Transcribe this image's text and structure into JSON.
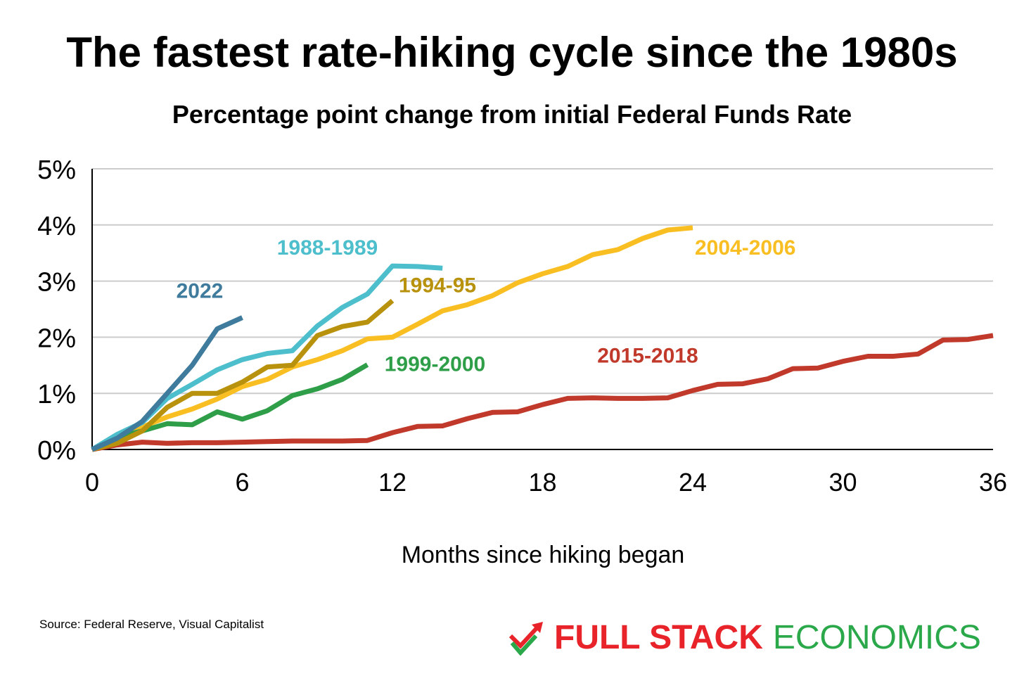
{
  "chart_data": {
    "type": "line",
    "title": "The fastest rate-hiking cycle since the 1980s",
    "subtitle": "Percentage point change from initial Federal Funds Rate",
    "xlabel": "Months since hiking began",
    "ylabel": "",
    "xlim": [
      0,
      36
    ],
    "ylim": [
      0,
      5
    ],
    "xticks": [
      0,
      6,
      12,
      18,
      24,
      30,
      36
    ],
    "yticks": [
      0,
      1,
      2,
      3,
      4,
      5
    ],
    "ytick_labels": [
      "0%",
      "1%",
      "2%",
      "3%",
      "4%",
      "5%"
    ],
    "grid": "horizontal",
    "series": [
      {
        "name": "2015-2018",
        "color": "#c0392b",
        "x": [
          0,
          1,
          2,
          3,
          4,
          5,
          6,
          7,
          8,
          9,
          10,
          11,
          12,
          13,
          14,
          15,
          16,
          17,
          18,
          19,
          20,
          21,
          22,
          23,
          24,
          25,
          26,
          27,
          28,
          29,
          30,
          31,
          32,
          33,
          34,
          35,
          36
        ],
        "values": [
          0.0,
          0.08,
          0.13,
          0.11,
          0.12,
          0.12,
          0.13,
          0.14,
          0.15,
          0.15,
          0.15,
          0.16,
          0.3,
          0.41,
          0.42,
          0.55,
          0.66,
          0.67,
          0.8,
          0.91,
          0.92,
          0.91,
          0.91,
          0.92,
          1.05,
          1.16,
          1.17,
          1.26,
          1.44,
          1.45,
          1.57,
          1.66,
          1.66,
          1.7,
          1.95,
          1.96,
          2.03
        ]
      },
      {
        "name": "2004-2006",
        "color": "#f9bf22",
        "x": [
          0,
          1,
          2,
          3,
          4,
          5,
          6,
          7,
          8,
          9,
          10,
          11,
          12,
          13,
          14,
          15,
          16,
          17,
          18,
          19,
          20,
          21,
          22,
          23,
          24
        ],
        "values": [
          0.0,
          0.25,
          0.4,
          0.58,
          0.72,
          0.9,
          1.12,
          1.25,
          1.47,
          1.6,
          1.76,
          1.97,
          2.0,
          2.23,
          2.47,
          2.58,
          2.74,
          2.97,
          3.13,
          3.26,
          3.47,
          3.56,
          3.76,
          3.91,
          3.95
        ]
      },
      {
        "name": "1999-2000",
        "color": "#2e9e48",
        "x": [
          0,
          1,
          2,
          3,
          4,
          5,
          6,
          7,
          8,
          9,
          10,
          11
        ],
        "values": [
          0.0,
          0.22,
          0.33,
          0.46,
          0.44,
          0.67,
          0.54,
          0.69,
          0.96,
          1.08,
          1.25,
          1.51
        ]
      },
      {
        "name": "1994-95",
        "color": "#b8920c",
        "x": [
          0,
          1,
          2,
          3,
          4,
          5,
          6,
          7,
          8,
          9,
          10,
          11,
          12
        ],
        "values": [
          0.0,
          0.11,
          0.33,
          0.75,
          1.0,
          1.0,
          1.2,
          1.47,
          1.5,
          2.03,
          2.19,
          2.27,
          2.65
        ]
      },
      {
        "name": "1988-1989",
        "color": "#4dbecb",
        "x": [
          0,
          1,
          2,
          3,
          4,
          5,
          6,
          7,
          8,
          9,
          10,
          11,
          12,
          13,
          14
        ],
        "values": [
          0.0,
          0.27,
          0.48,
          0.91,
          1.16,
          1.42,
          1.6,
          1.71,
          1.76,
          2.2,
          2.53,
          2.77,
          3.27,
          3.26,
          3.23
        ]
      },
      {
        "name": "2022",
        "color": "#3f7b9c",
        "x": [
          0,
          1,
          2,
          3,
          4,
          5,
          6
        ],
        "values": [
          0.0,
          0.2,
          0.5,
          1.0,
          1.5,
          2.15,
          2.35
        ]
      }
    ],
    "annotations": [
      {
        "text": "2022",
        "color": "#3f7b9c",
        "x": 4.3,
        "y": 2.7
      },
      {
        "text": "1988-1989",
        "color": "#4dbecb",
        "x": 9.4,
        "y": 3.47
      },
      {
        "text": "1994-95",
        "color": "#b8920c",
        "x": 13.8,
        "y": 2.8
      },
      {
        "text": "1999-2000",
        "color": "#2e9e48",
        "x": 13.7,
        "y": 1.4
      },
      {
        "text": "2004-2006",
        "color": "#f9bf22",
        "x": 26.1,
        "y": 3.47
      },
      {
        "text": "2015-2018",
        "color": "#c0392b",
        "x": 22.2,
        "y": 1.55
      }
    ]
  },
  "footer": {
    "source": "Source: Federal Reserve, Visual Capitalist",
    "brand_part1": "FULL STACK",
    "brand_part2": "ECONOMICS",
    "brand_red": "#e8232a",
    "brand_green": "#2aa84a",
    "brand_icon": "checkmark-trend-icon"
  }
}
